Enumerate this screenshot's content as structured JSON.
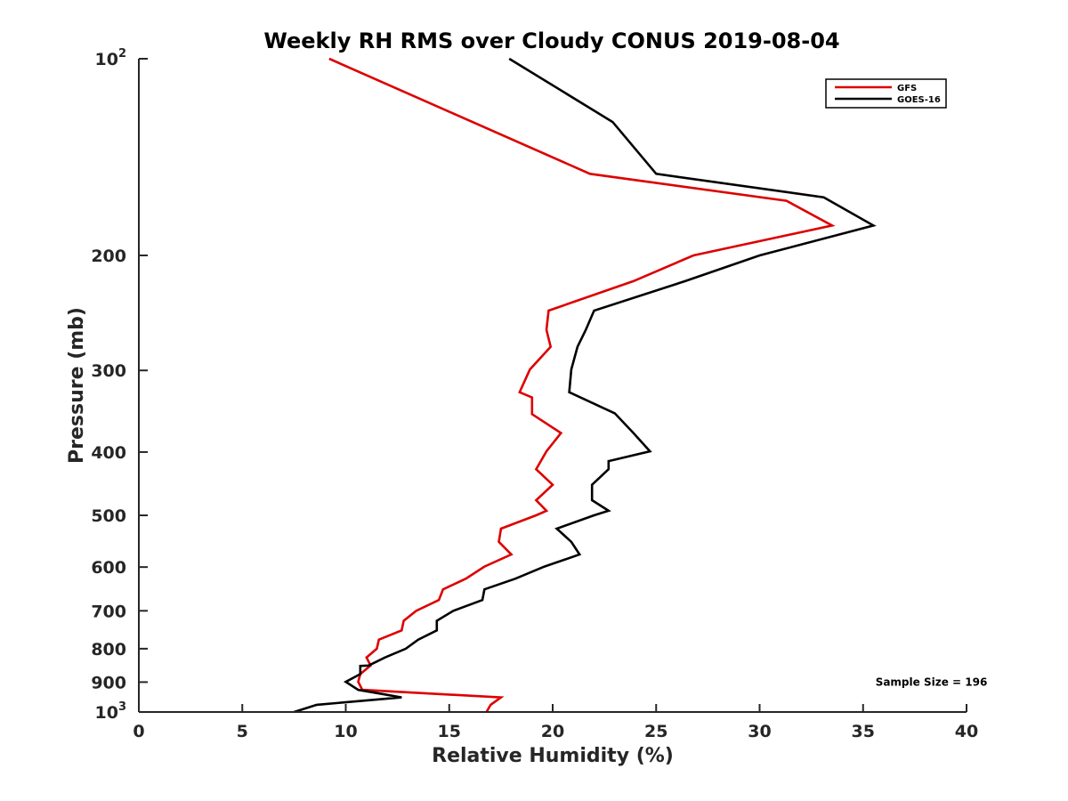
{
  "chart_data": {
    "type": "line",
    "title": "Weekly RH RMS over Cloudy CONUS 2019-08-04",
    "xlabel": "Relative Humidity (%)",
    "ylabel": "Pressure (mb)",
    "xlim": [
      0,
      40
    ],
    "ylim": [
      100,
      1000
    ],
    "y_scale": "log",
    "y_reversed": true,
    "x_ticks": [
      0,
      5,
      10,
      15,
      20,
      25,
      30,
      35,
      40
    ],
    "y_ticks": [
      {
        "value": 100,
        "label": "10",
        "sup": "2"
      },
      {
        "value": 200,
        "label": "200"
      },
      {
        "value": 300,
        "label": "300"
      },
      {
        "value": 400,
        "label": "400"
      },
      {
        "value": 500,
        "label": "500"
      },
      {
        "value": 600,
        "label": "600"
      },
      {
        "value": 700,
        "label": "700"
      },
      {
        "value": 800,
        "label": "800"
      },
      {
        "value": 900,
        "label": "900"
      },
      {
        "value": 1000,
        "label": "10",
        "sup": "3"
      }
    ],
    "legend_position": "top-right",
    "series": [
      {
        "name": "GFS",
        "color": "#dd0000",
        "points": [
          [
            9.2,
            100
          ],
          [
            21.8,
            150
          ],
          [
            31.3,
            165
          ],
          [
            33.5,
            180
          ],
          [
            26.8,
            200
          ],
          [
            23.9,
            219
          ],
          [
            19.8,
            243
          ],
          [
            19.7,
            260
          ],
          [
            19.9,
            276
          ],
          [
            18.9,
            299
          ],
          [
            18.4,
            324
          ],
          [
            19.0,
            330
          ],
          [
            19.0,
            350
          ],
          [
            20.4,
            374
          ],
          [
            19.7,
            399
          ],
          [
            19.2,
            425
          ],
          [
            20.0,
            449
          ],
          [
            19.2,
            474
          ],
          [
            19.7,
            492
          ],
          [
            19.2,
            500
          ],
          [
            17.5,
            524
          ],
          [
            17.4,
            549
          ],
          [
            18.0,
            574
          ],
          [
            16.7,
            599
          ],
          [
            15.8,
            625
          ],
          [
            14.7,
            649
          ],
          [
            14.5,
            674
          ],
          [
            13.4,
            700
          ],
          [
            12.8,
            725
          ],
          [
            12.7,
            750
          ],
          [
            11.6,
            775
          ],
          [
            11.5,
            800
          ],
          [
            11.0,
            825
          ],
          [
            11.2,
            849
          ],
          [
            10.7,
            875
          ],
          [
            10.6,
            899
          ],
          [
            10.8,
            925
          ],
          [
            17.5,
            950
          ],
          [
            17.0,
            975
          ],
          [
            16.8,
            1000
          ]
        ]
      },
      {
        "name": "GOES-16",
        "color": "#000000",
        "points": [
          [
            17.9,
            100
          ],
          [
            22.9,
            125
          ],
          [
            25.0,
            150
          ],
          [
            33.1,
            163
          ],
          [
            35.5,
            180
          ],
          [
            30.0,
            200
          ],
          [
            26.4,
            219
          ],
          [
            22.0,
            243
          ],
          [
            21.6,
            260
          ],
          [
            21.2,
            276
          ],
          [
            20.9,
            299
          ],
          [
            20.8,
            324
          ],
          [
            23.0,
            349
          ],
          [
            23.9,
            374
          ],
          [
            24.7,
            399
          ],
          [
            22.7,
            413
          ],
          [
            22.7,
            425
          ],
          [
            21.9,
            449
          ],
          [
            21.9,
            474
          ],
          [
            22.7,
            492
          ],
          [
            22.0,
            500
          ],
          [
            20.2,
            524
          ],
          [
            20.9,
            549
          ],
          [
            21.3,
            574
          ],
          [
            19.6,
            599
          ],
          [
            18.2,
            625
          ],
          [
            16.7,
            649
          ],
          [
            16.6,
            674
          ],
          [
            15.2,
            700
          ],
          [
            14.4,
            725
          ],
          [
            14.4,
            750
          ],
          [
            13.5,
            775
          ],
          [
            12.9,
            800
          ],
          [
            11.9,
            825
          ],
          [
            11.1,
            849
          ],
          [
            10.7,
            850
          ],
          [
            10.7,
            875
          ],
          [
            10.0,
            899
          ],
          [
            10.6,
            925
          ],
          [
            11.9,
            940
          ],
          [
            12.7,
            950
          ],
          [
            8.6,
            975
          ],
          [
            7.5,
            1000
          ]
        ]
      }
    ],
    "annotations": [
      {
        "text": "Sample Size = 196",
        "x": 38.3,
        "y": 900
      }
    ]
  }
}
